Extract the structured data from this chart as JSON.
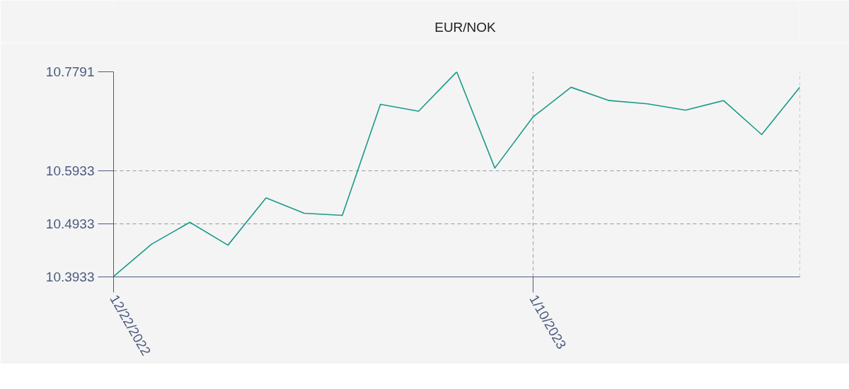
{
  "chart_data": {
    "type": "line",
    "categories": [
      "12/22/2022",
      null,
      null,
      null,
      null,
      null,
      null,
      null,
      null,
      null,
      null,
      "1/10/2023",
      null,
      null,
      null,
      null,
      null,
      null,
      null
    ],
    "series": [
      {
        "name": "EUR/NOK",
        "color": "#1a9a8a",
        "values": [
          10.394,
          10.455,
          10.496,
          10.453,
          10.542,
          10.513,
          10.509,
          10.718,
          10.705,
          10.779,
          10.598,
          10.694,
          10.75,
          10.725,
          10.719,
          10.707,
          10.725,
          10.661,
          10.75
        ]
      }
    ],
    "ylim": [
      10.3933,
      10.7791
    ],
    "yticks": [
      10.3933,
      10.4933,
      10.5933,
      10.7791
    ],
    "grid": true,
    "legend": "top"
  }
}
